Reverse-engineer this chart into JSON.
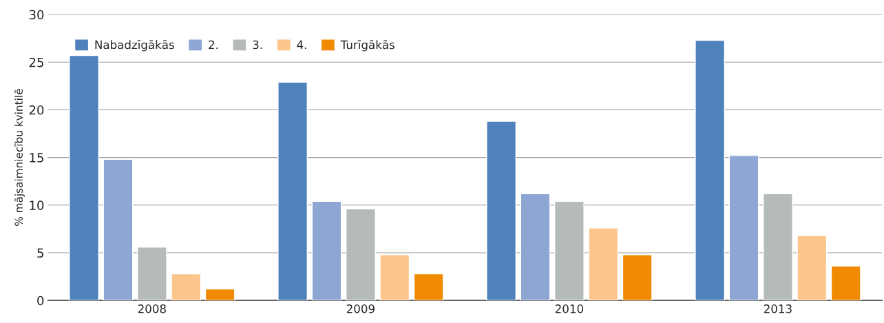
{
  "chart_data": {
    "type": "bar",
    "ylabel": "% mājsaimniecību kvintilē",
    "categories": [
      "2008",
      "2009",
      "2010",
      "2013"
    ],
    "series": [
      {
        "name": "Nabadzīgākās",
        "color": "#4f81bd",
        "values": [
          25.7,
          22.9,
          18.8,
          27.3
        ]
      },
      {
        "name": "2.",
        "color": "#8ea6d3",
        "values": [
          14.8,
          10.4,
          11.2,
          15.2
        ]
      },
      {
        "name": "3.",
        "color": "#b5bbb6",
        "values": [
          5.6,
          9.6,
          10.4,
          11.2
        ]
      },
      {
        "name": "4.",
        "color": "#fbc58b",
        "values": [
          2.8,
          4.8,
          7.6,
          6.8
        ]
      },
      {
        "name": "Turīgākās",
        "color": "#f08a00",
        "values": [
          1.2,
          2.8,
          4.8,
          3.6
        ]
      }
    ],
    "ylim": [
      0,
      30
    ],
    "yticks": [
      0,
      5,
      10,
      15,
      20,
      25,
      30
    ],
    "grid": "y",
    "legend": "top left"
  }
}
